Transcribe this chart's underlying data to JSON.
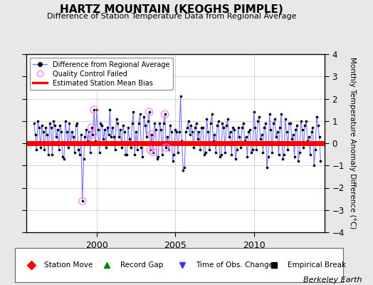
{
  "title": "HARTZ MOUNTAIN (KEOGHS PIMPLE)",
  "subtitle": "Difference of Station Temperature Data from Regional Average",
  "ylabel": "Monthly Temperature Anomaly Difference (°C)",
  "credit": "Berkeley Earth",
  "ylim": [
    -4,
    4
  ],
  "xlim": [
    1995.5,
    2014.5
  ],
  "xticks": [
    2000,
    2005,
    2010
  ],
  "yticks": [
    -4,
    -3,
    -2,
    -1,
    0,
    1,
    2,
    3,
    4
  ],
  "bias_line_y": 0.0,
  "bias_color": "#ff0000",
  "line_color": "#7777ff",
  "dot_color": "#000000",
  "qc_color": "#ff88ff",
  "bg_color": "#e8e8e8",
  "plot_bg_color": "#ffffff",
  "time": [
    1996.0,
    1996.083,
    1996.167,
    1996.25,
    1996.333,
    1996.417,
    1996.5,
    1996.583,
    1996.667,
    1996.75,
    1996.833,
    1996.917,
    1997.0,
    1997.083,
    1997.167,
    1997.25,
    1997.333,
    1997.417,
    1997.5,
    1997.583,
    1997.667,
    1997.75,
    1997.833,
    1997.917,
    1998.0,
    1998.083,
    1998.167,
    1998.25,
    1998.333,
    1998.417,
    1998.5,
    1998.583,
    1998.667,
    1998.75,
    1998.833,
    1998.917,
    1999.0,
    1999.083,
    1999.167,
    1999.25,
    1999.333,
    1999.417,
    1999.5,
    1999.583,
    1999.667,
    1999.75,
    1999.833,
    1999.917,
    2000.0,
    2000.083,
    2000.167,
    2000.25,
    2000.333,
    2000.417,
    2000.5,
    2000.583,
    2000.667,
    2000.75,
    2000.833,
    2000.917,
    2001.0,
    2001.083,
    2001.167,
    2001.25,
    2001.333,
    2001.417,
    2001.5,
    2001.583,
    2001.667,
    2001.75,
    2001.833,
    2001.917,
    2002.0,
    2002.083,
    2002.167,
    2002.25,
    2002.333,
    2002.417,
    2002.5,
    2002.583,
    2002.667,
    2002.75,
    2002.833,
    2002.917,
    2003.0,
    2003.083,
    2003.167,
    2003.25,
    2003.333,
    2003.417,
    2003.5,
    2003.583,
    2003.667,
    2003.75,
    2003.833,
    2003.917,
    2004.0,
    2004.083,
    2004.167,
    2004.25,
    2004.333,
    2004.417,
    2004.5,
    2004.583,
    2004.667,
    2004.75,
    2004.833,
    2004.917,
    2005.0,
    2005.083,
    2005.167,
    2005.25,
    2005.333,
    2005.417,
    2005.5,
    2005.583,
    2005.667,
    2005.75,
    2005.833,
    2005.917,
    2006.0,
    2006.083,
    2006.167,
    2006.25,
    2006.333,
    2006.417,
    2006.5,
    2006.583,
    2006.667,
    2006.75,
    2006.833,
    2006.917,
    2007.0,
    2007.083,
    2007.167,
    2007.25,
    2007.333,
    2007.417,
    2007.5,
    2007.583,
    2007.667,
    2007.75,
    2007.833,
    2007.917,
    2008.0,
    2008.083,
    2008.167,
    2008.25,
    2008.333,
    2008.417,
    2008.5,
    2008.583,
    2008.667,
    2008.75,
    2008.833,
    2008.917,
    2009.0,
    2009.083,
    2009.167,
    2009.25,
    2009.333,
    2009.417,
    2009.5,
    2009.583,
    2009.667,
    2009.75,
    2009.833,
    2009.917,
    2010.0,
    2010.083,
    2010.167,
    2010.25,
    2010.333,
    2010.417,
    2010.5,
    2010.583,
    2010.667,
    2010.75,
    2010.833,
    2010.917,
    2011.0,
    2011.083,
    2011.167,
    2011.25,
    2011.333,
    2011.417,
    2011.5,
    2011.583,
    2011.667,
    2011.75,
    2011.833,
    2011.917,
    2012.0,
    2012.083,
    2012.167,
    2012.25,
    2012.333,
    2012.417,
    2012.5,
    2012.583,
    2012.667,
    2012.75,
    2012.833,
    2012.917,
    2013.0,
    2013.083,
    2013.167,
    2013.25,
    2013.333,
    2013.417,
    2013.5,
    2013.583,
    2013.667,
    2013.75,
    2013.833,
    2013.917,
    2014.0,
    2014.083,
    2014.167,
    2014.25
  ],
  "values": [
    0.9,
    0.4,
    -0.3,
    1.0,
    0.7,
    -0.2,
    0.8,
    0.5,
    -0.3,
    0.7,
    0.4,
    -0.5,
    0.9,
    0.7,
    -0.5,
    1.0,
    0.8,
    0.3,
    0.6,
    -0.3,
    0.8,
    0.5,
    -0.6,
    -0.7,
    1.0,
    0.5,
    -0.2,
    0.9,
    0.0,
    0.5,
    0.3,
    -0.4,
    0.8,
    0.9,
    -0.3,
    -0.5,
    0.4,
    -2.6,
    -0.7,
    0.3,
    0.6,
    0.1,
    0.5,
    -0.4,
    0.7,
    0.4,
    1.5,
    0.1,
    1.5,
    0.6,
    -0.4,
    0.9,
    0.8,
    0.2,
    0.6,
    -0.2,
    0.7,
    0.4,
    1.5,
    0.3,
    0.7,
    0.3,
    -0.3,
    1.1,
    0.9,
    0.3,
    0.6,
    -0.2,
    0.8,
    0.5,
    -0.5,
    -0.5,
    0.7,
    0.2,
    -0.2,
    0.9,
    1.4,
    -0.5,
    0.5,
    -0.3,
    0.9,
    1.3,
    -0.2,
    -0.6,
    1.2,
    0.8,
    0.3,
    1.0,
    1.4,
    -0.3,
    0.4,
    -0.4,
    0.9,
    0.6,
    -0.7,
    -0.6,
    0.9,
    0.6,
    -0.5,
    0.9,
    1.3,
    -0.2,
    0.3,
    -0.3,
    0.8,
    0.5,
    -0.8,
    -0.5,
    0.6,
    0.5,
    -0.4,
    0.5,
    2.1,
    0.1,
    -1.2,
    -1.1,
    0.5,
    0.7,
    1.0,
    0.4,
    0.8,
    0.5,
    -0.2,
    0.7,
    0.9,
    0.2,
    0.5,
    -0.3,
    0.7,
    0.7,
    -0.5,
    -0.4,
    1.1,
    0.5,
    -0.3,
    0.9,
    1.3,
    0.1,
    0.4,
    -0.4,
    0.8,
    1.0,
    -0.6,
    -0.5,
    0.9,
    0.7,
    -0.4,
    0.8,
    1.1,
    0.3,
    0.5,
    -0.5,
    0.7,
    0.6,
    -0.7,
    -0.3,
    0.7,
    0.3,
    -0.2,
    0.7,
    0.9,
    0.1,
    0.3,
    -0.6,
    0.5,
    0.6,
    -0.4,
    -0.3,
    1.4,
    0.7,
    -0.3,
    1.0,
    1.2,
    0.2,
    0.4,
    -0.4,
    0.7,
    0.9,
    -1.1,
    -0.6,
    1.3,
    0.6,
    -0.4,
    0.9,
    1.1,
    0.3,
    0.5,
    -0.5,
    0.7,
    1.3,
    -0.7,
    -0.5,
    1.1,
    0.5,
    -0.3,
    0.9,
    0.9,
    0.2,
    0.4,
    -0.6,
    0.6,
    0.8,
    -0.8,
    -0.4,
    1.0,
    0.6,
    -0.2,
    0.8,
    1.0,
    0.1,
    0.3,
    -0.5,
    0.5,
    0.7,
    -1.0,
    -0.3,
    1.2,
    0.8,
    0.3,
    -0.8
  ],
  "qc_failed_indices": [
    37,
    44,
    45,
    46,
    88,
    89,
    90,
    91,
    100,
    101
  ],
  "legend2_items": [
    {
      "label": "Station Move",
      "color": "#ff0000",
      "marker": "D"
    },
    {
      "label": "Record Gap",
      "color": "#008000",
      "marker": "^"
    },
    {
      "label": "Time of Obs. Change",
      "color": "#3333ff",
      "marker": "v"
    },
    {
      "label": "Empirical Break",
      "color": "#000000",
      "marker": "s"
    }
  ]
}
